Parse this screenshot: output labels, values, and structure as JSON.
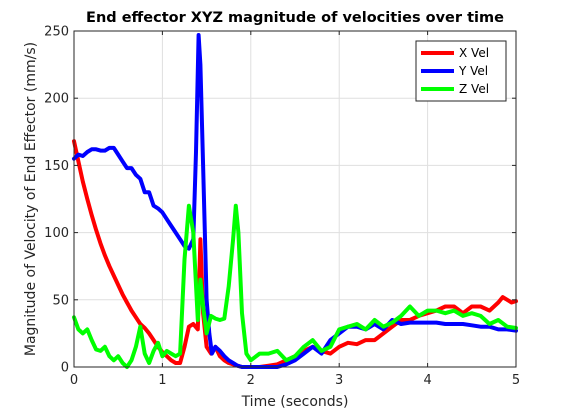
{
  "chart_data": {
    "type": "line",
    "title": "End effector XYZ magnitude of velocities over time",
    "xlabel": "Time (seconds)",
    "ylabel": "Magnitude of Velocity of End Effector (mm/s)",
    "xlim": [
      0,
      5
    ],
    "ylim": [
      0,
      250
    ],
    "xticks": [
      0,
      1,
      2,
      3,
      4,
      5
    ],
    "yticks": [
      0,
      50,
      100,
      150,
      200,
      250
    ],
    "grid": true,
    "legend_position": "top-right",
    "series": [
      {
        "name": "X Vel",
        "color": "#ff0000",
        "x": [
          0,
          0.05,
          0.1,
          0.15,
          0.2,
          0.25,
          0.3,
          0.35,
          0.4,
          0.45,
          0.5,
          0.55,
          0.6,
          0.65,
          0.7,
          0.75,
          0.8,
          0.85,
          0.9,
          0.95,
          1.0,
          1.05,
          1.1,
          1.15,
          1.2,
          1.25,
          1.3,
          1.35,
          1.4,
          1.43,
          1.46,
          1.5,
          1.55,
          1.6,
          1.65,
          1.7,
          1.75,
          1.8,
          1.85,
          1.9,
          1.95,
          2.0,
          2.1,
          2.2,
          2.3,
          2.4,
          2.5,
          2.6,
          2.7,
          2.8,
          2.9,
          3.0,
          3.1,
          3.2,
          3.3,
          3.4,
          3.5,
          3.6,
          3.7,
          3.8,
          3.9,
          4.0,
          4.1,
          4.2,
          4.3,
          4.4,
          4.5,
          4.6,
          4.7,
          4.8,
          4.85,
          4.9,
          4.95,
          5.0
        ],
        "values": [
          168,
          153,
          138,
          125,
          113,
          102,
          92,
          83,
          75,
          68,
          61,
          54,
          48,
          42,
          37,
          32,
          29,
          25,
          20,
          15,
          11,
          8,
          5,
          3,
          3,
          15,
          30,
          32,
          28,
          95,
          40,
          15,
          10,
          15,
          8,
          5,
          3,
          2,
          1,
          0,
          0,
          0,
          0,
          1,
          2,
          5,
          8,
          12,
          15,
          12,
          10,
          15,
          18,
          17,
          20,
          20,
          25,
          30,
          35,
          35,
          38,
          40,
          42,
          45,
          45,
          40,
          45,
          45,
          42,
          48,
          52,
          50,
          48,
          49
        ]
      },
      {
        "name": "Y Vel",
        "color": "#0000ff",
        "x": [
          0,
          0.05,
          0.1,
          0.15,
          0.2,
          0.25,
          0.3,
          0.35,
          0.4,
          0.45,
          0.5,
          0.55,
          0.6,
          0.65,
          0.7,
          0.75,
          0.8,
          0.85,
          0.9,
          0.95,
          1.0,
          1.05,
          1.1,
          1.15,
          1.2,
          1.25,
          1.3,
          1.35,
          1.38,
          1.41,
          1.43,
          1.46,
          1.5,
          1.53,
          1.56,
          1.6,
          1.65,
          1.7,
          1.75,
          1.8,
          1.85,
          1.9,
          2.0,
          2.1,
          2.2,
          2.3,
          2.4,
          2.5,
          2.6,
          2.7,
          2.8,
          2.9,
          3.0,
          3.1,
          3.2,
          3.3,
          3.4,
          3.5,
          3.6,
          3.7,
          3.8,
          3.9,
          4.0,
          4.1,
          4.2,
          4.3,
          4.4,
          4.5,
          4.6,
          4.7,
          4.8,
          4.9,
          5.0
        ],
        "values": [
          155,
          158,
          157,
          160,
          162,
          162,
          161,
          161,
          163,
          163,
          158,
          153,
          148,
          148,
          143,
          140,
          130,
          130,
          120,
          118,
          115,
          110,
          105,
          100,
          95,
          90,
          88,
          95,
          160,
          247,
          225,
          150,
          50,
          25,
          10,
          15,
          12,
          8,
          5,
          3,
          1,
          0,
          0,
          0,
          0,
          0,
          2,
          5,
          10,
          15,
          10,
          20,
          25,
          30,
          30,
          28,
          32,
          28,
          35,
          32,
          33,
          33,
          33,
          33,
          32,
          32,
          32,
          31,
          30,
          30,
          28,
          28,
          27
        ]
      },
      {
        "name": "Z Vel",
        "color": "#00ff00",
        "x": [
          0,
          0.05,
          0.1,
          0.15,
          0.2,
          0.25,
          0.3,
          0.35,
          0.4,
          0.45,
          0.5,
          0.55,
          0.6,
          0.65,
          0.7,
          0.75,
          0.8,
          0.85,
          0.9,
          0.95,
          1.0,
          1.05,
          1.1,
          1.15,
          1.2,
          1.25,
          1.3,
          1.35,
          1.4,
          1.43,
          1.46,
          1.5,
          1.55,
          1.6,
          1.65,
          1.7,
          1.75,
          1.8,
          1.83,
          1.86,
          1.9,
          1.95,
          2.0,
          2.1,
          2.2,
          2.3,
          2.4,
          2.5,
          2.6,
          2.7,
          2.8,
          2.9,
          3.0,
          3.1,
          3.2,
          3.3,
          3.4,
          3.5,
          3.6,
          3.7,
          3.8,
          3.9,
          4.0,
          4.1,
          4.2,
          4.3,
          4.4,
          4.5,
          4.6,
          4.7,
          4.8,
          4.9,
          5.0
        ],
        "values": [
          37,
          28,
          25,
          28,
          20,
          13,
          12,
          15,
          8,
          5,
          8,
          3,
          0,
          5,
          15,
          30,
          10,
          3,
          12,
          18,
          8,
          12,
          10,
          8,
          10,
          80,
          120,
          100,
          35,
          65,
          45,
          25,
          38,
          36,
          35,
          36,
          60,
          95,
          120,
          100,
          40,
          10,
          5,
          10,
          10,
          12,
          5,
          8,
          15,
          20,
          12,
          15,
          28,
          30,
          32,
          28,
          35,
          30,
          33,
          38,
          45,
          38,
          42,
          42,
          40,
          42,
          38,
          40,
          38,
          32,
          35,
          30,
          29
        ]
      }
    ]
  }
}
